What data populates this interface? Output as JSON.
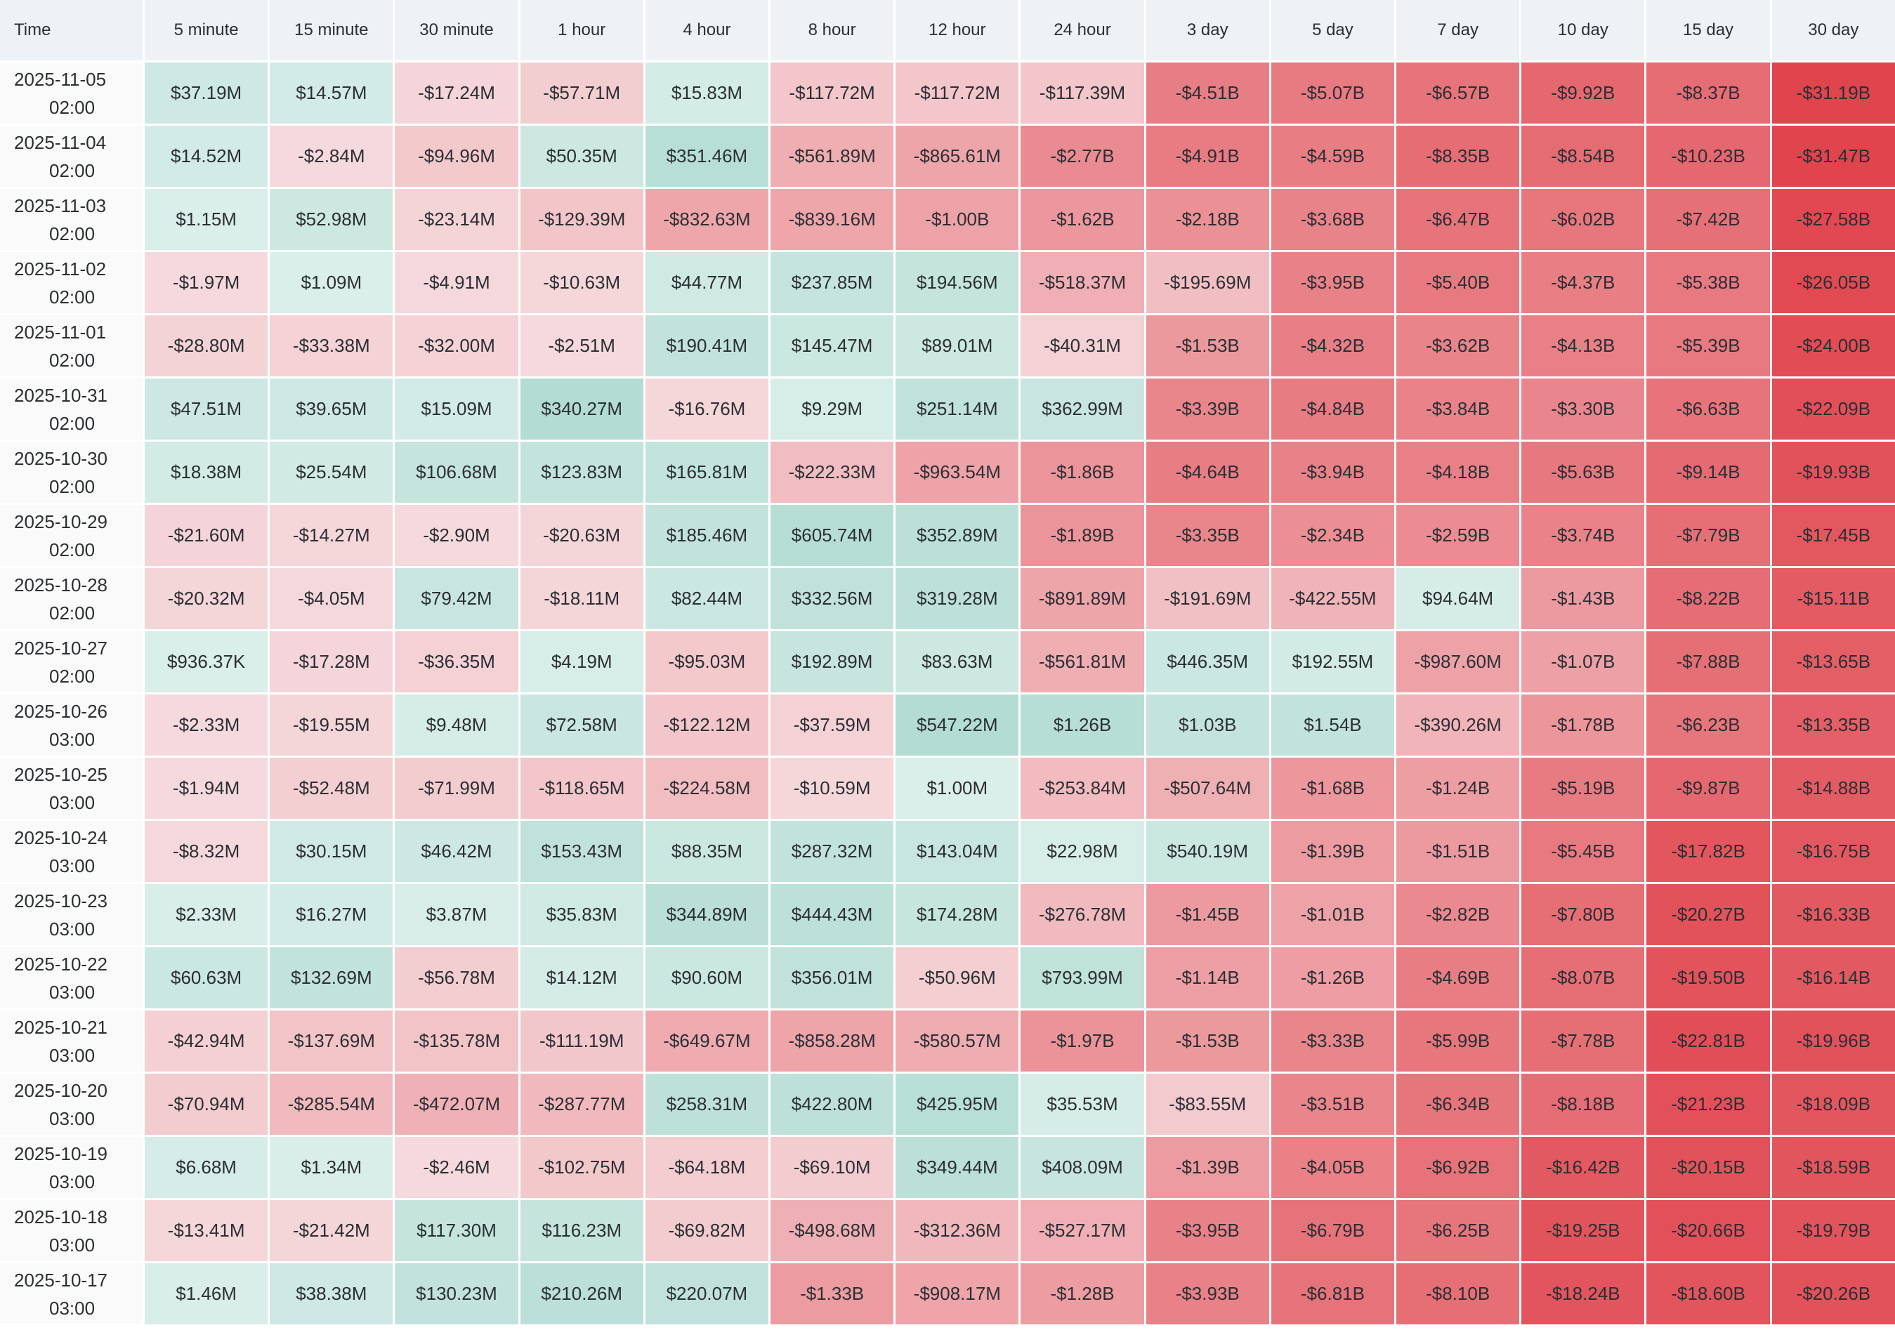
{
  "header": {
    "time_label": "Time",
    "columns": [
      "5 minute",
      "15 minute",
      "30 minute",
      "1 hour",
      "4 hour",
      "8 hour",
      "12 hour",
      "24 hour",
      "3 day",
      "5 day",
      "7 day",
      "10 day",
      "15 day",
      "30 day"
    ]
  },
  "colors": {
    "positive": "#a5d6ca",
    "negative": "#e0434c",
    "neutral_pos": "#dcefeb",
    "neutral_neg": "#f5d9dc"
  },
  "rows": [
    {
      "date": "2025-11-05",
      "time": "02:00",
      "values": [
        "$37.19M",
        "$14.57M",
        "-$17.24M",
        "-$57.71M",
        "$15.83M",
        "-$117.72M",
        "-$117.72M",
        "-$117.39M",
        "-$4.51B",
        "-$5.07B",
        "-$6.57B",
        "-$9.92B",
        "-$8.37B",
        "-$31.19B"
      ]
    },
    {
      "date": "2025-11-04",
      "time": "02:00",
      "values": [
        "$14.52M",
        "-$2.84M",
        "-$94.96M",
        "$50.35M",
        "$351.46M",
        "-$561.89M",
        "-$865.61M",
        "-$2.77B",
        "-$4.91B",
        "-$4.59B",
        "-$8.35B",
        "-$8.54B",
        "-$10.23B",
        "-$31.47B"
      ]
    },
    {
      "date": "2025-11-03",
      "time": "02:00",
      "values": [
        "$1.15M",
        "$52.98M",
        "-$23.14M",
        "-$129.39M",
        "-$832.63M",
        "-$839.16M",
        "-$1.00B",
        "-$1.62B",
        "-$2.18B",
        "-$3.68B",
        "-$6.47B",
        "-$6.02B",
        "-$7.42B",
        "-$27.58B"
      ]
    },
    {
      "date": "2025-11-02",
      "time": "02:00",
      "values": [
        "-$1.97M",
        "$1.09M",
        "-$4.91M",
        "-$10.63M",
        "$44.77M",
        "$237.85M",
        "$194.56M",
        "-$518.37M",
        "-$195.69M",
        "-$3.95B",
        "-$5.40B",
        "-$4.37B",
        "-$5.38B",
        "-$26.05B"
      ]
    },
    {
      "date": "2025-11-01",
      "time": "02:00",
      "values": [
        "-$28.80M",
        "-$33.38M",
        "-$32.00M",
        "-$2.51M",
        "$190.41M",
        "$145.47M",
        "$89.01M",
        "-$40.31M",
        "-$1.53B",
        "-$4.32B",
        "-$3.62B",
        "-$4.13B",
        "-$5.39B",
        "-$24.00B"
      ]
    },
    {
      "date": "2025-10-31",
      "time": "02:00",
      "values": [
        "$47.51M",
        "$39.65M",
        "$15.09M",
        "$340.27M",
        "-$16.76M",
        "$9.29M",
        "$251.14M",
        "$362.99M",
        "-$3.39B",
        "-$4.84B",
        "-$3.84B",
        "-$3.30B",
        "-$6.63B",
        "-$22.09B"
      ]
    },
    {
      "date": "2025-10-30",
      "time": "02:00",
      "values": [
        "$18.38M",
        "$25.54M",
        "$106.68M",
        "$123.83M",
        "$165.81M",
        "-$222.33M",
        "-$963.54M",
        "-$1.86B",
        "-$4.64B",
        "-$3.94B",
        "-$4.18B",
        "-$5.63B",
        "-$9.14B",
        "-$19.93B"
      ]
    },
    {
      "date": "2025-10-29",
      "time": "02:00",
      "values": [
        "-$21.60M",
        "-$14.27M",
        "-$2.90M",
        "-$20.63M",
        "$185.46M",
        "$605.74M",
        "$352.89M",
        "-$1.89B",
        "-$3.35B",
        "-$2.34B",
        "-$2.59B",
        "-$3.74B",
        "-$7.79B",
        "-$17.45B"
      ]
    },
    {
      "date": "2025-10-28",
      "time": "02:00",
      "values": [
        "-$20.32M",
        "-$4.05M",
        "$79.42M",
        "-$18.11M",
        "$82.44M",
        "$332.56M",
        "$319.28M",
        "-$891.89M",
        "-$191.69M",
        "-$422.55M",
        "$94.64M",
        "-$1.43B",
        "-$8.22B",
        "-$15.11B"
      ]
    },
    {
      "date": "2025-10-27",
      "time": "02:00",
      "values": [
        "$936.37K",
        "-$17.28M",
        "-$36.35M",
        "$4.19M",
        "-$95.03M",
        "$192.89M",
        "$83.63M",
        "-$561.81M",
        "$446.35M",
        "$192.55M",
        "-$987.60M",
        "-$1.07B",
        "-$7.88B",
        "-$13.65B"
      ]
    },
    {
      "date": "2025-10-26",
      "time": "03:00",
      "values": [
        "-$2.33M",
        "-$19.55M",
        "$9.48M",
        "$72.58M",
        "-$122.12M",
        "-$37.59M",
        "$547.22M",
        "$1.26B",
        "$1.03B",
        "$1.54B",
        "-$390.26M",
        "-$1.78B",
        "-$6.23B",
        "-$13.35B"
      ]
    },
    {
      "date": "2025-10-25",
      "time": "03:00",
      "values": [
        "-$1.94M",
        "-$52.48M",
        "-$71.99M",
        "-$118.65M",
        "-$224.58M",
        "-$10.59M",
        "$1.00M",
        "-$253.84M",
        "-$507.64M",
        "-$1.68B",
        "-$1.24B",
        "-$5.19B",
        "-$9.87B",
        "-$14.88B"
      ]
    },
    {
      "date": "2025-10-24",
      "time": "03:00",
      "values": [
        "-$8.32M",
        "$30.15M",
        "$46.42M",
        "$153.43M",
        "$88.35M",
        "$287.32M",
        "$143.04M",
        "$22.98M",
        "$540.19M",
        "-$1.39B",
        "-$1.51B",
        "-$5.45B",
        "-$17.82B",
        "-$16.75B"
      ]
    },
    {
      "date": "2025-10-23",
      "time": "03:00",
      "values": [
        "$2.33M",
        "$16.27M",
        "$3.87M",
        "$35.83M",
        "$344.89M",
        "$444.43M",
        "$174.28M",
        "-$276.78M",
        "-$1.45B",
        "-$1.01B",
        "-$2.82B",
        "-$7.80B",
        "-$20.27B",
        "-$16.33B"
      ]
    },
    {
      "date": "2025-10-22",
      "time": "03:00",
      "values": [
        "$60.63M",
        "$132.69M",
        "-$56.78M",
        "$14.12M",
        "$90.60M",
        "$356.01M",
        "-$50.96M",
        "$793.99M",
        "-$1.14B",
        "-$1.26B",
        "-$4.69B",
        "-$8.07B",
        "-$19.50B",
        "-$16.14B"
      ]
    },
    {
      "date": "2025-10-21",
      "time": "03:00",
      "values": [
        "-$42.94M",
        "-$137.69M",
        "-$135.78M",
        "-$111.19M",
        "-$649.67M",
        "-$858.28M",
        "-$580.57M",
        "-$1.97B",
        "-$1.53B",
        "-$3.33B",
        "-$5.99B",
        "-$7.78B",
        "-$22.81B",
        "-$19.96B"
      ]
    },
    {
      "date": "2025-10-20",
      "time": "03:00",
      "values": [
        "-$70.94M",
        "-$285.54M",
        "-$472.07M",
        "-$287.77M",
        "$258.31M",
        "$422.80M",
        "$425.95M",
        "$35.53M",
        "-$83.55M",
        "-$3.51B",
        "-$6.34B",
        "-$8.18B",
        "-$21.23B",
        "-$18.09B"
      ]
    },
    {
      "date": "2025-10-19",
      "time": "03:00",
      "values": [
        "$6.68M",
        "$1.34M",
        "-$2.46M",
        "-$102.75M",
        "-$64.18M",
        "-$69.10M",
        "$349.44M",
        "$408.09M",
        "-$1.39B",
        "-$4.05B",
        "-$6.92B",
        "-$16.42B",
        "-$20.15B",
        "-$18.59B"
      ]
    },
    {
      "date": "2025-10-18",
      "time": "03:00",
      "values": [
        "-$13.41M",
        "-$21.42M",
        "$117.30M",
        "$116.23M",
        "-$69.82M",
        "-$498.68M",
        "-$312.36M",
        "-$527.17M",
        "-$3.95B",
        "-$6.79B",
        "-$6.25B",
        "-$19.25B",
        "-$20.66B",
        "-$19.79B"
      ]
    },
    {
      "date": "2025-10-17",
      "time": "03:00",
      "values": [
        "$1.46M",
        "$38.38M",
        "$130.23M",
        "$210.26M",
        "$220.07M",
        "-$1.33B",
        "-$908.17M",
        "-$1.28B",
        "-$3.93B",
        "-$6.81B",
        "-$8.10B",
        "-$18.24B",
        "-$18.60B",
        "-$20.26B"
      ]
    }
  ]
}
